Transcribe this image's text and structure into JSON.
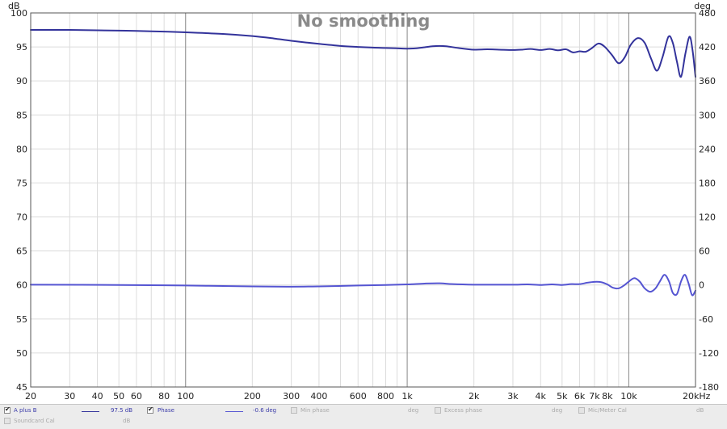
{
  "chart_data": {
    "type": "line",
    "title": "No smoothing",
    "x_scale": "log",
    "xlim": [
      20,
      20000
    ],
    "x_ticks": [
      {
        "value": 20,
        "label": "20"
      },
      {
        "value": 30,
        "label": "30"
      },
      {
        "value": 40,
        "label": "40"
      },
      {
        "value": 50,
        "label": "50"
      },
      {
        "value": 60,
        "label": "60"
      },
      {
        "value": 80,
        "label": "80"
      },
      {
        "value": 100,
        "label": "100"
      },
      {
        "value": 200,
        "label": "200"
      },
      {
        "value": 300,
        "label": "300"
      },
      {
        "value": 400,
        "label": "400"
      },
      {
        "value": 600,
        "label": "600"
      },
      {
        "value": 800,
        "label": "800"
      },
      {
        "value": 1000,
        "label": "1k"
      },
      {
        "value": 2000,
        "label": "2k"
      },
      {
        "value": 3000,
        "label": "3k"
      },
      {
        "value": 4000,
        "label": "4k"
      },
      {
        "value": 5000,
        "label": "5k"
      },
      {
        "value": 6000,
        "label": "6k"
      },
      {
        "value": 7000,
        "label": "7k"
      },
      {
        "value": 8000,
        "label": "8k"
      },
      {
        "value": 10000,
        "label": "10k"
      },
      {
        "value": 20000,
        "label": "20kHz"
      }
    ],
    "x_minor_gridlines": [
      20,
      30,
      40,
      50,
      60,
      70,
      80,
      90,
      100,
      200,
      300,
      400,
      500,
      600,
      700,
      800,
      900,
      1000,
      2000,
      3000,
      4000,
      5000,
      6000,
      7000,
      8000,
      9000,
      10000,
      20000
    ],
    "x_major_gridlines": [
      100,
      1000,
      10000
    ],
    "y_left": {
      "unit": "dB",
      "ylim": [
        45,
        100
      ],
      "ticks": [
        45,
        50,
        55,
        60,
        65,
        70,
        75,
        80,
        85,
        90,
        95,
        100
      ]
    },
    "y_right": {
      "unit": "deg",
      "ylim": [
        -180,
        480
      ],
      "ticks": [
        -180,
        -120,
        -60,
        0,
        60,
        120,
        180,
        240,
        300,
        360,
        420,
        480
      ]
    },
    "grid": true,
    "series": [
      {
        "name": "A plus B",
        "axis": "left",
        "color": "#33339b",
        "points": [
          [
            20,
            97.5
          ],
          [
            30,
            97.5
          ],
          [
            40,
            97.45
          ],
          [
            50,
            97.4
          ],
          [
            60,
            97.35
          ],
          [
            80,
            97.25
          ],
          [
            100,
            97.15
          ],
          [
            150,
            96.9
          ],
          [
            200,
            96.6
          ],
          [
            250,
            96.25
          ],
          [
            300,
            95.9
          ],
          [
            400,
            95.45
          ],
          [
            500,
            95.15
          ],
          [
            600,
            95.0
          ],
          [
            700,
            94.9
          ],
          [
            800,
            94.85
          ],
          [
            900,
            94.8
          ],
          [
            1000,
            94.75
          ],
          [
            1100,
            94.8
          ],
          [
            1200,
            94.95
          ],
          [
            1300,
            95.1
          ],
          [
            1400,
            95.15
          ],
          [
            1500,
            95.1
          ],
          [
            1700,
            94.85
          ],
          [
            2000,
            94.6
          ],
          [
            2300,
            94.65
          ],
          [
            2600,
            94.6
          ],
          [
            3000,
            94.55
          ],
          [
            3300,
            94.6
          ],
          [
            3600,
            94.7
          ],
          [
            4000,
            94.55
          ],
          [
            4400,
            94.7
          ],
          [
            4800,
            94.5
          ],
          [
            5200,
            94.65
          ],
          [
            5600,
            94.2
          ],
          [
            6000,
            94.35
          ],
          [
            6400,
            94.3
          ],
          [
            6800,
            94.8
          ],
          [
            7300,
            95.5
          ],
          [
            7800,
            95.0
          ],
          [
            8400,
            93.8
          ],
          [
            9000,
            92.6
          ],
          [
            9600,
            93.5
          ],
          [
            10200,
            95.3
          ],
          [
            11000,
            96.3
          ],
          [
            11800,
            95.6
          ],
          [
            12600,
            93.3
          ],
          [
            13400,
            91.5
          ],
          [
            14200,
            93.5
          ],
          [
            15100,
            96.5
          ],
          [
            15800,
            95.6
          ],
          [
            16500,
            92.8
          ],
          [
            17200,
            90.6
          ],
          [
            18000,
            94.0
          ],
          [
            18800,
            96.5
          ],
          [
            19400,
            94.5
          ],
          [
            20000,
            90.6
          ]
        ]
      },
      {
        "name": "Phase",
        "axis": "right",
        "color": "#5555d2",
        "points": [
          [
            20,
            0.5
          ],
          [
            50,
            0
          ],
          [
            100,
            -1
          ],
          [
            200,
            -2.5
          ],
          [
            300,
            -3
          ],
          [
            400,
            -2.5
          ],
          [
            600,
            -1
          ],
          [
            800,
            0
          ],
          [
            1000,
            1
          ],
          [
            1200,
            2.5
          ],
          [
            1400,
            3
          ],
          [
            1600,
            1.5
          ],
          [
            2000,
            0.5
          ],
          [
            2500,
            0.5
          ],
          [
            3000,
            0.5
          ],
          [
            3500,
            1
          ],
          [
            4000,
            0
          ],
          [
            4500,
            1
          ],
          [
            5000,
            0
          ],
          [
            5500,
            1.5
          ],
          [
            6000,
            1.5
          ],
          [
            6500,
            4
          ],
          [
            7000,
            5.5
          ],
          [
            7500,
            5
          ],
          [
            8000,
            1
          ],
          [
            8500,
            -5
          ],
          [
            9000,
            -6
          ],
          [
            9500,
            -1
          ],
          [
            10000,
            6
          ],
          [
            10600,
            12
          ],
          [
            11200,
            6
          ],
          [
            11800,
            -6
          ],
          [
            12500,
            -12
          ],
          [
            13200,
            -6
          ],
          [
            13800,
            6
          ],
          [
            14500,
            18
          ],
          [
            15200,
            6
          ],
          [
            15800,
            -14
          ],
          [
            16500,
            -16
          ],
          [
            17200,
            6
          ],
          [
            17900,
            18
          ],
          [
            18600,
            3
          ],
          [
            19300,
            -18
          ],
          [
            20000,
            -10
          ]
        ]
      }
    ]
  },
  "legend": {
    "row1": [
      {
        "label": "A plus B",
        "checked": true,
        "enabled": true,
        "value": "97.5 dB"
      },
      {
        "label": "Phase",
        "checked": true,
        "enabled": true,
        "value": "-0.6 deg"
      },
      {
        "label": "Min phase",
        "checked": false,
        "enabled": false,
        "unit": "deg"
      },
      {
        "label": "Excess phase",
        "checked": false,
        "enabled": false,
        "unit": "deg"
      },
      {
        "label": "Mic/Meter Cal",
        "checked": false,
        "enabled": false,
        "unit": "dB"
      }
    ],
    "row2": [
      {
        "label": "Soundcard Cal",
        "checked": false,
        "enabled": false,
        "unit": "dB"
      }
    ]
  },
  "colors": {
    "grid_minor": "#dcdcdc",
    "grid_major": "#8c8c8c",
    "frame": "#555555",
    "panel": "#ececec"
  }
}
